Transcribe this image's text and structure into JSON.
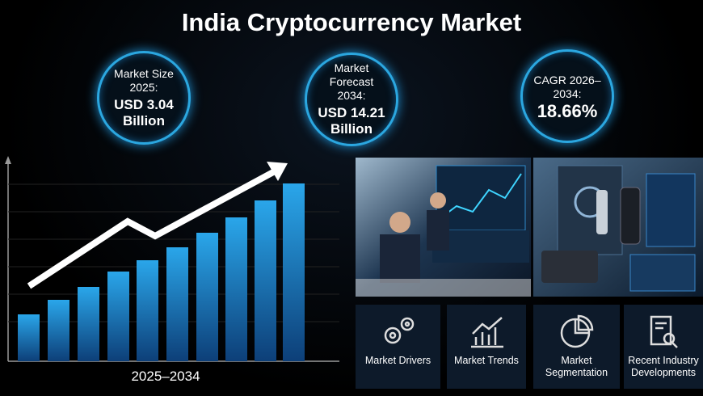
{
  "header": {
    "title": "India Cryptocurrency Market"
  },
  "stats": [
    {
      "label": "Market Size 2025:",
      "value": "USD 3.04 Billion"
    },
    {
      "label": "Market Forecast 2034:",
      "value": "USD 14.21 Billion"
    },
    {
      "label": "CAGR 2026–2034:",
      "value": "18.66%"
    }
  ],
  "chart": {
    "caption": "2025–2034"
  },
  "cards": [
    {
      "label": "Market Drivers"
    },
    {
      "label": "Market Trends"
    },
    {
      "label": "Market Segmentation"
    },
    {
      "label": "Recent Industry Developments"
    }
  ]
}
